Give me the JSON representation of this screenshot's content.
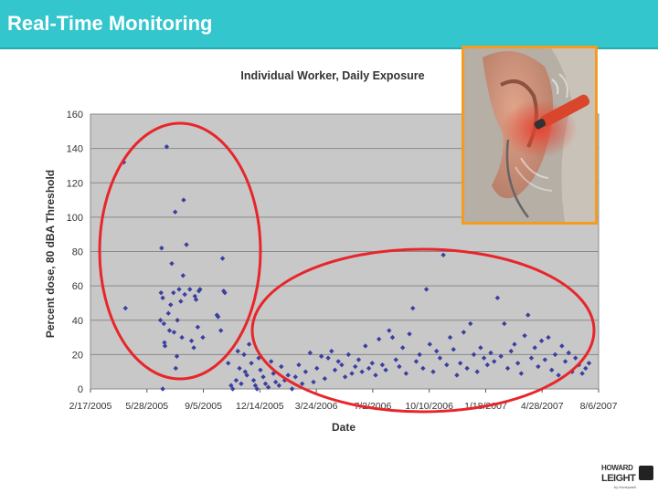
{
  "header": {
    "title": "Real-Time Monitoring",
    "bg_color": "#33c6cc"
  },
  "logo": {
    "line1": "HOWARD",
    "line2": "LEIGHT",
    "sub": "by Honeywell"
  },
  "photo": {
    "icon": "ear-dosimeter-photo",
    "border_color": "#f39c1f"
  },
  "chart_data": {
    "type": "scatter",
    "title": "Individual Worker, Daily Exposure",
    "xlabel": "Date",
    "ylabel": "Percent dose, 80 dBA Threshold",
    "x_ticks": [
      "2/17/2005",
      "5/28/2005",
      "9/5/2005",
      "12/14/2005",
      "3/24/2006",
      "7/2/2006",
      "10/10/2006",
      "1/18/2007",
      "4/28/2007",
      "8/6/2007"
    ],
    "y_ticks": [
      "0",
      "20",
      "40",
      "60",
      "80",
      "100",
      "120",
      "140",
      "160"
    ],
    "xlim": [
      "2005-02-17",
      "2007-08-06"
    ],
    "ylim": [
      0,
      160
    ],
    "grid": true,
    "marker_color": "#3a3fa0",
    "highlight_color": "#e8262a",
    "series": [
      {
        "points": [
          [
            "2005-04-17",
            132
          ],
          [
            "2005-04-20",
            47
          ],
          [
            "2005-06-21",
            40
          ],
          [
            "2005-06-22",
            56
          ],
          [
            "2005-06-23",
            82
          ],
          [
            "2005-06-25",
            53
          ],
          [
            "2005-06-27",
            38
          ],
          [
            "2005-06-28",
            27
          ],
          [
            "2005-06-29",
            25
          ],
          [
            "2005-07-02",
            141
          ],
          [
            "2005-07-05",
            44
          ],
          [
            "2005-07-07",
            34
          ],
          [
            "2005-07-09",
            49
          ],
          [
            "2005-07-11",
            73
          ],
          [
            "2005-07-14",
            56
          ],
          [
            "2005-07-15",
            33
          ],
          [
            "2005-07-17",
            103
          ],
          [
            "2005-07-18",
            12
          ],
          [
            "2005-07-20",
            19
          ],
          [
            "2005-07-21",
            40
          ],
          [
            "2005-07-24",
            58
          ],
          [
            "2005-07-27",
            51
          ],
          [
            "2005-07-29",
            30
          ],
          [
            "2005-07-31",
            66
          ],
          [
            "2005-08-01",
            110
          ],
          [
            "2005-08-03",
            55
          ],
          [
            "2005-08-06",
            84
          ],
          [
            "2005-08-12",
            58
          ],
          [
            "2005-08-15",
            28
          ],
          [
            "2005-08-19",
            24
          ],
          [
            "2005-08-21",
            54
          ],
          [
            "2005-08-23",
            52
          ],
          [
            "2005-08-26",
            36
          ],
          [
            "2005-08-28",
            57
          ],
          [
            "2005-08-30",
            58
          ],
          [
            "2005-09-04",
            30
          ],
          [
            "2005-09-29",
            43
          ],
          [
            "2005-10-01",
            42
          ],
          [
            "2005-10-06",
            34
          ],
          [
            "2005-10-09",
            76
          ],
          [
            "2005-10-11",
            57
          ],
          [
            "2005-10-13",
            56
          ],
          [
            "2005-06-25",
            0
          ],
          [
            "2005-10-19",
            15
          ],
          [
            "2005-10-24",
            2
          ],
          [
            "2005-10-27",
            0
          ],
          [
            "2005-11-02",
            5
          ],
          [
            "2005-11-05",
            22
          ],
          [
            "2005-11-08",
            12
          ],
          [
            "2005-11-11",
            3
          ],
          [
            "2005-11-16",
            20
          ],
          [
            "2005-11-18",
            10
          ],
          [
            "2005-11-21",
            8
          ],
          [
            "2005-11-25",
            26
          ],
          [
            "2005-11-29",
            15
          ],
          [
            "2005-12-03",
            5
          ],
          [
            "2005-12-06",
            2
          ],
          [
            "2005-12-09",
            0
          ],
          [
            "2005-12-12",
            18
          ],
          [
            "2005-12-15",
            11
          ],
          [
            "2005-12-20",
            7
          ],
          [
            "2005-12-24",
            3
          ],
          [
            "2005-12-29",
            1
          ],
          [
            "2006-01-03",
            16
          ],
          [
            "2006-01-07",
            9
          ],
          [
            "2006-01-11",
            4
          ],
          [
            "2006-01-17",
            2
          ],
          [
            "2006-01-21",
            13
          ],
          [
            "2006-01-27",
            5
          ],
          [
            "2006-02-02",
            8
          ],
          [
            "2006-02-09",
            0
          ],
          [
            "2006-02-15",
            7
          ],
          [
            "2006-02-21",
            14
          ],
          [
            "2006-02-27",
            3
          ],
          [
            "2006-03-05",
            10
          ],
          [
            "2006-03-13",
            21
          ],
          [
            "2006-03-19",
            4
          ],
          [
            "2006-03-25",
            12
          ],
          [
            "2006-04-02",
            19
          ],
          [
            "2006-04-08",
            6
          ],
          [
            "2006-04-14",
            18
          ],
          [
            "2006-04-20",
            22
          ],
          [
            "2006-04-26",
            11
          ],
          [
            "2006-05-02",
            16
          ],
          [
            "2006-05-08",
            14
          ],
          [
            "2006-05-14",
            7
          ],
          [
            "2006-05-20",
            20
          ],
          [
            "2006-05-26",
            9
          ],
          [
            "2006-06-01",
            13
          ],
          [
            "2006-06-07",
            17
          ],
          [
            "2006-06-13",
            10
          ],
          [
            "2006-06-19",
            25
          ],
          [
            "2006-06-25",
            12
          ],
          [
            "2006-07-01",
            15
          ],
          [
            "2006-07-07",
            8
          ],
          [
            "2006-07-13",
            29
          ],
          [
            "2006-07-19",
            14
          ],
          [
            "2006-07-25",
            11
          ],
          [
            "2006-07-31",
            34
          ],
          [
            "2006-08-06",
            30
          ],
          [
            "2006-08-12",
            17
          ],
          [
            "2006-08-18",
            13
          ],
          [
            "2006-08-24",
            24
          ],
          [
            "2006-08-30",
            9
          ],
          [
            "2006-09-05",
            32
          ],
          [
            "2006-09-11",
            47
          ],
          [
            "2006-09-17",
            16
          ],
          [
            "2006-09-23",
            20
          ],
          [
            "2006-09-29",
            12
          ],
          [
            "2006-10-05",
            58
          ],
          [
            "2006-10-11",
            26
          ],
          [
            "2006-10-17",
            10
          ],
          [
            "2006-10-23",
            22
          ],
          [
            "2006-10-29",
            18
          ],
          [
            "2006-11-04",
            78
          ],
          [
            "2006-11-10",
            14
          ],
          [
            "2006-11-16",
            30
          ],
          [
            "2006-11-22",
            23
          ],
          [
            "2006-11-28",
            8
          ],
          [
            "2006-12-04",
            15
          ],
          [
            "2006-12-10",
            33
          ],
          [
            "2006-12-16",
            12
          ],
          [
            "2006-12-22",
            38
          ],
          [
            "2006-12-28",
            20
          ],
          [
            "2007-01-03",
            10
          ],
          [
            "2007-01-09",
            24
          ],
          [
            "2007-01-15",
            18
          ],
          [
            "2007-01-21",
            14
          ],
          [
            "2007-01-27",
            21
          ],
          [
            "2007-02-02",
            16
          ],
          [
            "2007-02-08",
            53
          ],
          [
            "2007-02-14",
            19
          ],
          [
            "2007-02-20",
            38
          ],
          [
            "2007-02-26",
            12
          ],
          [
            "2007-03-04",
            22
          ],
          [
            "2007-03-10",
            26
          ],
          [
            "2007-03-16",
            15
          ],
          [
            "2007-03-22",
            9
          ],
          [
            "2007-03-28",
            31
          ],
          [
            "2007-04-03",
            43
          ],
          [
            "2007-04-09",
            18
          ],
          [
            "2007-04-15",
            24
          ],
          [
            "2007-04-21",
            13
          ],
          [
            "2007-04-27",
            28
          ],
          [
            "2007-05-03",
            17
          ],
          [
            "2007-05-09",
            30
          ],
          [
            "2007-05-15",
            11
          ],
          [
            "2007-05-21",
            20
          ],
          [
            "2007-05-27",
            8
          ],
          [
            "2007-06-02",
            25
          ],
          [
            "2007-06-08",
            16
          ],
          [
            "2007-06-14",
            21
          ],
          [
            "2007-06-20",
            10
          ],
          [
            "2007-06-26",
            18
          ],
          [
            "2007-07-02",
            14
          ],
          [
            "2007-07-08",
            9
          ],
          [
            "2007-07-14",
            12
          ],
          [
            "2007-07-20",
            15
          ]
        ]
      }
    ]
  }
}
